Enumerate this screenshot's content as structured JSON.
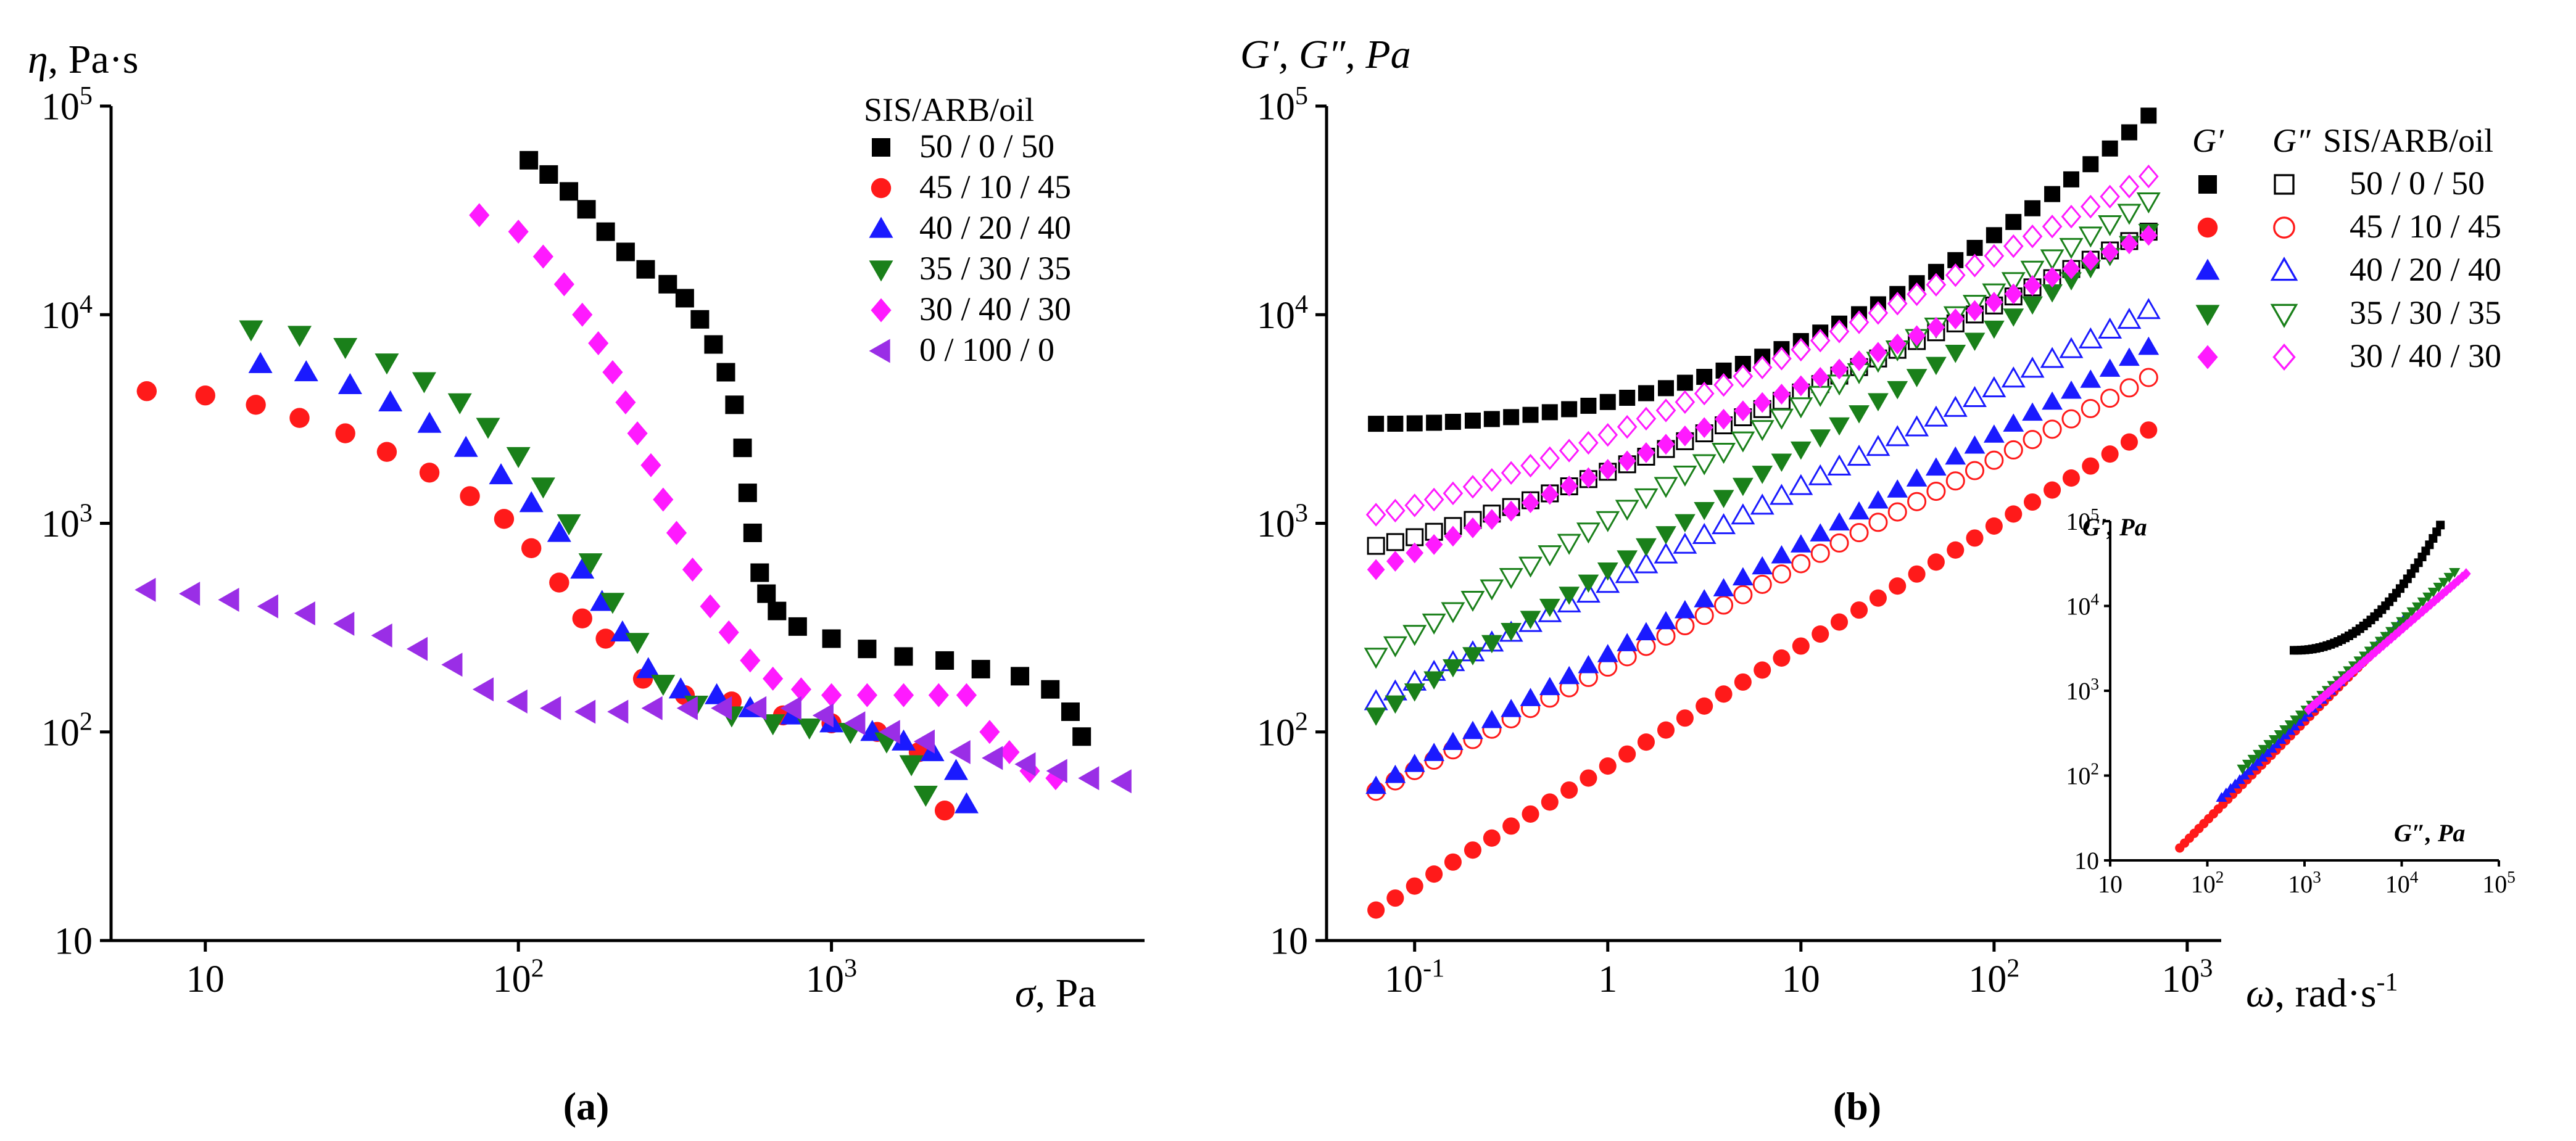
{
  "colors": {
    "black": "#000000",
    "red": "#ff1a1a",
    "blue": "#1a1aff",
    "green": "#1a801a",
    "magenta": "#ff1aff",
    "violet": "#9a2ee6"
  },
  "chart_data": [
    {
      "id": "a",
      "type": "scatter",
      "panel_label": "(a)",
      "ylabel_sym": "η",
      "ylabel_unit": ", Pa·s",
      "xlabel_sym": "σ",
      "xlabel_unit": ", Pa",
      "xscale": "log",
      "yscale": "log",
      "xlim": [
        5,
        10000
      ],
      "ylim": [
        10,
        100000
      ],
      "xticks": [
        {
          "value": 10,
          "base": "10",
          "exp": ""
        },
        {
          "value": 100,
          "base": "10",
          "exp": "2"
        },
        {
          "value": 1000,
          "base": "10",
          "exp": "3"
        }
      ],
      "yticks": [
        {
          "value": 10,
          "base": "10",
          "exp": ""
        },
        {
          "value": 100,
          "base": "10",
          "exp": "2"
        },
        {
          "value": 1000,
          "base": "10",
          "exp": "3"
        },
        {
          "value": 10000,
          "base": "10",
          "exp": "4"
        },
        {
          "value": 100000,
          "base": "10",
          "exp": "5"
        }
      ],
      "legend_title": "SIS/ARB/oil",
      "series": [
        {
          "name": "50 / 0 / 50",
          "color": "black",
          "marker": "square",
          "filled": true,
          "points": [
            [
              108,
              55000
            ],
            [
              125,
              47000
            ],
            [
              145,
              39000
            ],
            [
              165,
              32000
            ],
            [
              190,
              25000
            ],
            [
              220,
              20000
            ],
            [
              255,
              16500
            ],
            [
              300,
              14000
            ],
            [
              340,
              12000
            ],
            [
              380,
              9500
            ],
            [
              420,
              7200
            ],
            [
              460,
              5300
            ],
            [
              490,
              3700
            ],
            [
              520,
              2300
            ],
            [
              540,
              1400
            ],
            [
              560,
              900
            ],
            [
              590,
              580
            ],
            [
              620,
              460
            ],
            [
              670,
              380
            ],
            [
              780,
              320
            ],
            [
              1000,
              280
            ],
            [
              1300,
              250
            ],
            [
              1700,
              230
            ],
            [
              2300,
              220
            ],
            [
              3000,
              200
            ],
            [
              4000,
              185
            ],
            [
              5000,
              160
            ],
            [
              5800,
              125
            ],
            [
              6300,
              95
            ]
          ]
        },
        {
          "name": "45 / 10 / 45",
          "color": "red",
          "marker": "circle",
          "filled": true,
          "points": [
            [
              6.5,
              4300
            ],
            [
              10,
              4100
            ],
            [
              14.5,
              3700
            ],
            [
              20,
              3200
            ],
            [
              28,
              2700
            ],
            [
              38,
              2200
            ],
            [
              52,
              1750
            ],
            [
              70,
              1350
            ],
            [
              90,
              1050
            ],
            [
              110,
              760
            ],
            [
              135,
              520
            ],
            [
              160,
              350
            ],
            [
              190,
              280
            ],
            [
              250,
              180
            ],
            [
              340,
              150
            ],
            [
              480,
              140
            ],
            [
              700,
              120
            ],
            [
              1000,
              110
            ],
            [
              1400,
              100
            ],
            [
              1900,
              80
            ],
            [
              2300,
              42
            ]
          ]
        },
        {
          "name": "40 / 20 / 40",
          "color": "blue",
          "marker": "tri-up",
          "filled": true,
          "points": [
            [
              15,
              5800
            ],
            [
              21,
              5300
            ],
            [
              29,
              4600
            ],
            [
              39,
              3800
            ],
            [
              52,
              3000
            ],
            [
              68,
              2300
            ],
            [
              88,
              1700
            ],
            [
              110,
              1250
            ],
            [
              135,
              900
            ],
            [
              160,
              600
            ],
            [
              185,
              420
            ],
            [
              215,
              300
            ],
            [
              260,
              200
            ],
            [
              330,
              160
            ],
            [
              430,
              150
            ],
            [
              550,
              130
            ],
            [
              750,
              120
            ],
            [
              1000,
              110
            ],
            [
              1350,
              100
            ],
            [
              1700,
              90
            ],
            [
              2100,
              80
            ],
            [
              2500,
              65
            ],
            [
              2700,
              45
            ]
          ]
        },
        {
          "name": "35 / 30 / 35",
          "color": "green",
          "marker": "tri-down",
          "filled": true,
          "points": [
            [
              14,
              8500
            ],
            [
              20,
              8000
            ],
            [
              28,
              7000
            ],
            [
              38,
              5900
            ],
            [
              50,
              4800
            ],
            [
              65,
              3800
            ],
            [
              80,
              2900
            ],
            [
              100,
              2100
            ],
            [
              120,
              1500
            ],
            [
              145,
              1000
            ],
            [
              170,
              650
            ],
            [
              200,
              420
            ],
            [
              240,
              270
            ],
            [
              290,
              170
            ],
            [
              370,
              135
            ],
            [
              480,
              120
            ],
            [
              650,
              110
            ],
            [
              850,
              105
            ],
            [
              1150,
              100
            ],
            [
              1500,
              90
            ],
            [
              1800,
              70
            ],
            [
              2000,
              50
            ]
          ]
        },
        {
          "name": "30 / 40 / 30",
          "color": "magenta",
          "marker": "diamond",
          "filled": true,
          "points": [
            [
              75,
              30000
            ],
            [
              100,
              25000
            ],
            [
              120,
              19000
            ],
            [
              140,
              14000
            ],
            [
              160,
              10000
            ],
            [
              180,
              7300
            ],
            [
              200,
              5300
            ],
            [
              220,
              3800
            ],
            [
              240,
              2700
            ],
            [
              265,
              1900
            ],
            [
              290,
              1300
            ],
            [
              320,
              900
            ],
            [
              360,
              600
            ],
            [
              410,
              400
            ],
            [
              470,
              300
            ],
            [
              550,
              220
            ],
            [
              650,
              180
            ],
            [
              800,
              160
            ],
            [
              1000,
              150
            ],
            [
              1300,
              150
            ],
            [
              1700,
              150
            ],
            [
              2200,
              150
            ],
            [
              2700,
              150
            ],
            [
              3200,
              100
            ],
            [
              3700,
              80
            ],
            [
              4300,
              65
            ],
            [
              5200,
              60
            ]
          ]
        },
        {
          "name": "0 / 100 / 0",
          "color": "violet",
          "marker": "tri-left",
          "filled": true,
          "points": [
            [
              6.5,
              480
            ],
            [
              9,
              460
            ],
            [
              12,
              430
            ],
            [
              16,
              400
            ],
            [
              21,
              370
            ],
            [
              28,
              330
            ],
            [
              37,
              290
            ],
            [
              48,
              250
            ],
            [
              62,
              210
            ],
            [
              78,
              160
            ],
            [
              100,
              140
            ],
            [
              128,
              130
            ],
            [
              165,
              125
            ],
            [
              210,
              125
            ],
            [
              270,
              130
            ],
            [
              350,
              130
            ],
            [
              450,
              130
            ],
            [
              580,
              130
            ],
            [
              750,
              130
            ],
            [
              950,
              120
            ],
            [
              1200,
              110
            ],
            [
              1550,
              100
            ],
            [
              2000,
              90
            ],
            [
              2600,
              80
            ],
            [
              3300,
              75
            ],
            [
              4200,
              70
            ],
            [
              5300,
              65
            ],
            [
              6700,
              60
            ],
            [
              8500,
              58
            ]
          ]
        }
      ]
    },
    {
      "id": "b",
      "type": "scatter",
      "panel_label": "(b)",
      "ylabel": "G′, G″, Pa",
      "xlabel_sym": "ω",
      "xlabel_unit": ", rad·s",
      "xlabel_exp": "-1",
      "xscale": "log",
      "yscale": "log",
      "xlim": [
        0.035,
        1500
      ],
      "ylim": [
        10,
        100000
      ],
      "xticks": [
        {
          "value": 0.1,
          "base": "10",
          "exp": "-1"
        },
        {
          "value": 1,
          "base": "1",
          "exp": ""
        },
        {
          "value": 10,
          "base": "10",
          "exp": ""
        },
        {
          "value": 100,
          "base": "10",
          "exp": "2"
        },
        {
          "value": 1000,
          "base": "10",
          "exp": "3"
        }
      ],
      "yticks": [
        {
          "value": 10,
          "base": "10",
          "exp": ""
        },
        {
          "value": 100,
          "base": "10",
          "exp": "2"
        },
        {
          "value": 1000,
          "base": "10",
          "exp": "3"
        },
        {
          "value": 10000,
          "base": "10",
          "exp": "4"
        },
        {
          "value": 100000,
          "base": "10",
          "exp": "5"
        }
      ],
      "legend_header_g1": "G′",
      "legend_header_g2": "G″",
      "legend_title": "SIS/ARB/oil",
      "legend_labels": [
        "50 / 0 / 50",
        "45 / 10 / 45",
        "40 / 20 / 40",
        "35 / 30 / 35",
        "30 / 40 / 30"
      ],
      "x": [
        0.0631,
        0.0794,
        0.1,
        0.126,
        0.158,
        0.2,
        0.251,
        0.316,
        0.398,
        0.501,
        0.631,
        0.794,
        1.0,
        1.26,
        1.58,
        2.0,
        2.51,
        3.16,
        3.98,
        5.01,
        6.31,
        7.94,
        10,
        12.6,
        15.8,
        20,
        25.1,
        31.6,
        39.8,
        50.1,
        63.1,
        79.4,
        100,
        126,
        158,
        200,
        251,
        316,
        398,
        501,
        631
      ],
      "series": [
        {
          "name": "50 / 0 / 50 G′",
          "color": "black",
          "marker": "square",
          "filled": true,
          "y_start": 3000,
          "y_end": 90000,
          "curve": 2.2
        },
        {
          "name": "50 / 0 / 50 G″",
          "color": "black",
          "marker": "square",
          "filled": false,
          "y_start": 780,
          "y_end": 25000,
          "curve": 1.2
        },
        {
          "name": "45 / 10 / 45 G′",
          "color": "red",
          "marker": "circle",
          "filled": true,
          "y_start": 14,
          "y_end": 2800,
          "curve": 1.0
        },
        {
          "name": "45 / 10 / 45 G″",
          "color": "red",
          "marker": "circle",
          "filled": false,
          "y_start": 52,
          "y_end": 5000,
          "curve": 1.0
        },
        {
          "name": "40 / 20 / 40 G′",
          "color": "blue",
          "marker": "tri-up",
          "filled": true,
          "y_start": 55,
          "y_end": 7000,
          "curve": 1.0
        },
        {
          "name": "40 / 20 / 40 G″",
          "color": "blue",
          "marker": "tri-up",
          "filled": false,
          "y_start": 140,
          "y_end": 10500,
          "curve": 1.0
        },
        {
          "name": "35 / 30 / 35 G′",
          "color": "green",
          "marker": "tri-down",
          "filled": true,
          "y_start": 120,
          "y_end": 25000,
          "curve": 1.0
        },
        {
          "name": "35 / 30 / 35 G″",
          "color": "green",
          "marker": "tri-down",
          "filled": false,
          "y_start": 230,
          "y_end": 35000,
          "curve": 1.0
        },
        {
          "name": "30 / 40 / 30 G′",
          "color": "magenta",
          "marker": "diamond",
          "filled": true,
          "y_start": 600,
          "y_end": 24000,
          "curve": 1.0
        },
        {
          "name": "30 / 40 / 30 G″",
          "color": "magenta",
          "marker": "diamond",
          "filled": false,
          "y_start": 1100,
          "y_end": 46000,
          "curve": 1.2
        }
      ]
    },
    {
      "id": "inset",
      "type": "scatter",
      "ylabel": "G′, Pa",
      "xlabel": "G″, Pa",
      "xscale": "log",
      "yscale": "log",
      "xlim": [
        10,
        100000
      ],
      "ylim": [
        10,
        100000
      ],
      "xticks": [
        {
          "value": 10,
          "base": "10",
          "exp": ""
        },
        {
          "value": 100,
          "base": "10",
          "exp": "2"
        },
        {
          "value": 1000,
          "base": "10",
          "exp": "3"
        },
        {
          "value": 10000,
          "base": "10",
          "exp": "4"
        },
        {
          "value": 100000,
          "base": "10",
          "exp": "5"
        }
      ],
      "yticks": [
        {
          "value": 10,
          "base": "10",
          "exp": ""
        },
        {
          "value": 100,
          "base": "10",
          "exp": "2"
        },
        {
          "value": 1000,
          "base": "10",
          "exp": "3"
        },
        {
          "value": 10000,
          "base": "10",
          "exp": "4"
        },
        {
          "value": 100000,
          "base": "10",
          "exp": "5"
        }
      ],
      "series": [
        {
          "name": "50 / 0 / 50",
          "color": "black",
          "marker": "square",
          "filled": true,
          "x_start": 780,
          "x_end": 25000,
          "y_start": 3000,
          "y_end": 90000,
          "curve": 2.2
        },
        {
          "name": "45 / 10 / 45",
          "color": "red",
          "marker": "circle",
          "filled": true,
          "x_start": 52,
          "x_end": 5000,
          "y_start": 14,
          "y_end": 2800,
          "curve": 1.0
        },
        {
          "name": "40 / 20 / 40",
          "color": "blue",
          "marker": "tri-up",
          "filled": true,
          "x_start": 140,
          "x_end": 10500,
          "y_start": 55,
          "y_end": 7000,
          "curve": 1.0
        },
        {
          "name": "35 / 30 / 35",
          "color": "green",
          "marker": "tri-down",
          "filled": true,
          "x_start": 230,
          "x_end": 35000,
          "y_start": 120,
          "y_end": 25000,
          "curve": 1.0
        },
        {
          "name": "30 / 40 / 30",
          "color": "magenta",
          "marker": "diamond",
          "filled": true,
          "x_start": 1100,
          "x_end": 46000,
          "y_start": 600,
          "y_end": 24000,
          "curve": 1.0
        }
      ]
    }
  ]
}
